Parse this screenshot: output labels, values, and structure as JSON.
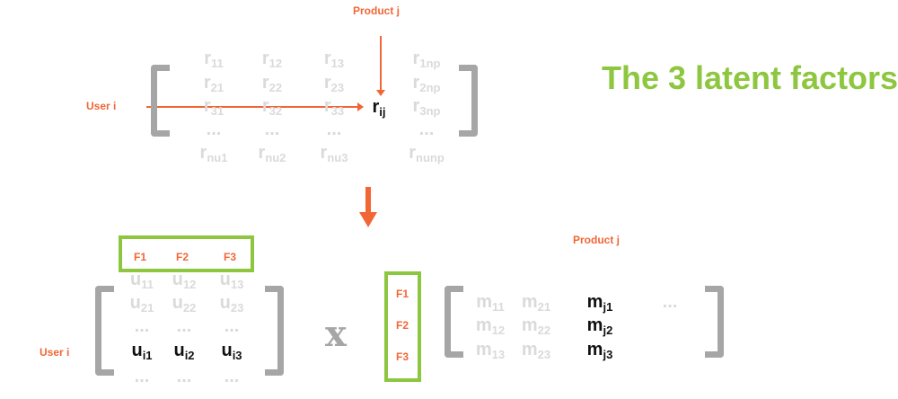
{
  "title": "The 3 latent factors",
  "colors": {
    "accent_orange": "#f26636",
    "accent_green": "#8dc63f",
    "faded": "#dadada",
    "bracket": "#a6a6a6"
  },
  "rating_matrix": {
    "product_label": "Product j",
    "user_label": "User i",
    "highlight": {
      "base": "r",
      "sub": "ij"
    },
    "cells": [
      [
        {
          "b": "r",
          "s": "11"
        },
        {
          "b": "r",
          "s": "12"
        },
        {
          "b": "r",
          "s": "13"
        },
        {
          "b": "r",
          "s": "1np"
        }
      ],
      [
        {
          "b": "r",
          "s": "21"
        },
        {
          "b": "r",
          "s": "22"
        },
        {
          "b": "r",
          "s": "23"
        },
        {
          "b": "r",
          "s": "2np"
        }
      ],
      [
        {
          "b": "r",
          "s": "31"
        },
        {
          "b": "r",
          "s": "32"
        },
        {
          "b": "r",
          "s": "33"
        },
        {
          "b": "r",
          "s": "3np"
        }
      ],
      [
        {
          "b": "...",
          "s": ""
        },
        {
          "b": "...",
          "s": ""
        },
        {
          "b": "...",
          "s": ""
        },
        {
          "b": "...",
          "s": ""
        }
      ],
      [
        {
          "b": "r",
          "s": "nu1"
        },
        {
          "b": "r",
          "s": "nu2"
        },
        {
          "b": "r",
          "s": "nu3"
        },
        {
          "b": "r",
          "s": "nunp"
        }
      ]
    ]
  },
  "user_matrix": {
    "user_label": "User i",
    "factors": [
      "F1",
      "F2",
      "F3"
    ],
    "cells": [
      [
        {
          "b": "u",
          "s": "11"
        },
        {
          "b": "u",
          "s": "12"
        },
        {
          "b": "u",
          "s": "13"
        }
      ],
      [
        {
          "b": "u",
          "s": "21"
        },
        {
          "b": "u",
          "s": "22"
        },
        {
          "b": "u",
          "s": "23"
        }
      ],
      [
        {
          "b": "...",
          "s": ""
        },
        {
          "b": "...",
          "s": ""
        },
        {
          "b": "...",
          "s": ""
        }
      ],
      [
        {
          "b": "u",
          "s": "i1"
        },
        {
          "b": "u",
          "s": "i2"
        },
        {
          "b": "u",
          "s": "i3"
        }
      ],
      [
        {
          "b": "...",
          "s": ""
        },
        {
          "b": "...",
          "s": ""
        },
        {
          "b": "...",
          "s": ""
        }
      ]
    ]
  },
  "operator": "x",
  "product_matrix": {
    "product_label": "Product j",
    "factors": [
      "F1",
      "F2",
      "F3"
    ],
    "cells": [
      [
        {
          "b": "m",
          "s": "11"
        },
        {
          "b": "m",
          "s": "21"
        },
        {
          "b": "m",
          "s": "j1"
        },
        {
          "b": "...",
          "s": ""
        }
      ],
      [
        {
          "b": "m",
          "s": "12"
        },
        {
          "b": "m",
          "s": "22"
        },
        {
          "b": "m",
          "s": "j2"
        },
        {
          "b": "",
          "s": ""
        }
      ],
      [
        {
          "b": "m",
          "s": "13"
        },
        {
          "b": "m",
          "s": "23"
        },
        {
          "b": "m",
          "s": "j3"
        },
        {
          "b": "",
          "s": ""
        }
      ]
    ]
  }
}
